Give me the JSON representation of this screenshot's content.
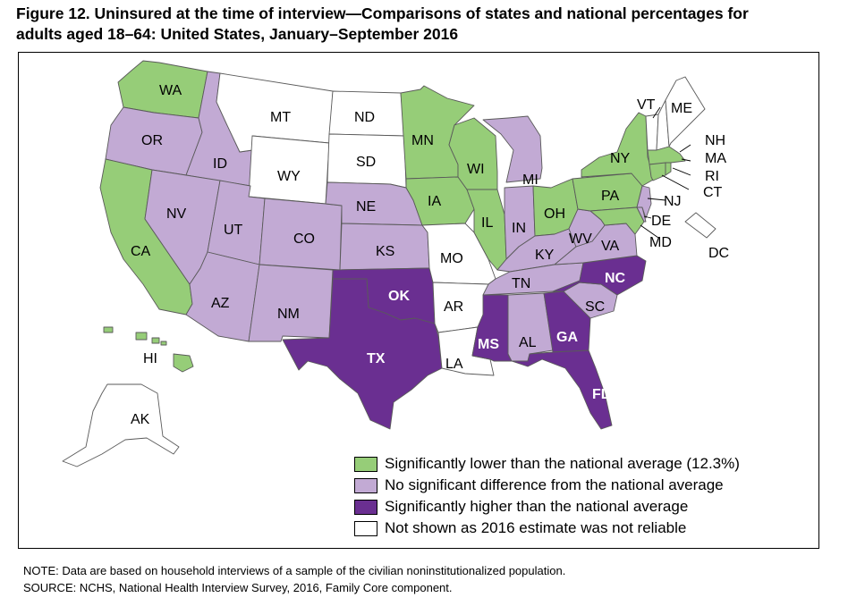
{
  "title_line1": "Figure 12. Uninsured at the time of interview—Comparisons of states and national percentages for",
  "title_line2": "adults aged 18–64: United States, January–September 2016",
  "colors": {
    "lower": "#96cd78",
    "no_difference": "#c2aad4",
    "higher": "#6a2f91",
    "not_shown": "#ffffff",
    "border": "#5a5a5a"
  },
  "legend": [
    {
      "key": "lower",
      "label": "Significantly lower than the national average (12.3%)"
    },
    {
      "key": "no_difference",
      "label": "No significant difference from the national average"
    },
    {
      "key": "higher",
      "label": "Significantly higher than the national average"
    },
    {
      "key": "not_shown",
      "label": "Not shown as 2016 estimate was not reliable"
    }
  ],
  "note": "NOTE: Data are based on household interviews of a sample of the civilian noninstitutionalized population.",
  "source": "SOURCE: NCHS, National Health Interview Survey, 2016, Family Core component.",
  "states": {
    "WA": "lower",
    "OR": "no_difference",
    "CA": "lower",
    "ID": "no_difference",
    "NV": "no_difference",
    "MT": "not_shown",
    "WY": "not_shown",
    "UT": "no_difference",
    "AZ": "no_difference",
    "CO": "no_difference",
    "NM": "no_difference",
    "ND": "not_shown",
    "SD": "not_shown",
    "NE": "no_difference",
    "KS": "no_difference",
    "OK": "higher",
    "TX": "higher",
    "MN": "lower",
    "IA": "lower",
    "MO": "not_shown",
    "AR": "not_shown",
    "LA": "not_shown",
    "WI": "lower",
    "IL": "lower",
    "MI": "no_difference",
    "IN": "no_difference",
    "OH": "lower",
    "KY": "no_difference",
    "TN": "no_difference",
    "MS": "higher",
    "AL": "no_difference",
    "GA": "higher",
    "FL": "higher",
    "SC": "no_difference",
    "NC": "higher",
    "VA": "no_difference",
    "WV": "no_difference",
    "PA": "lower",
    "NY": "lower",
    "VT": "not_shown",
    "NH": "not_shown",
    "ME": "not_shown",
    "MA": "lower",
    "RI": "lower",
    "CT": "lower",
    "NJ": "no_difference",
    "DE": "no_difference",
    "MD": "lower",
    "DC": "not_shown",
    "AK": "not_shown",
    "HI": "lower"
  },
  "labels": {
    "WA": "WA",
    "OR": "OR",
    "CA": "CA",
    "ID": "ID",
    "NV": "NV",
    "MT": "MT",
    "WY": "WY",
    "UT": "UT",
    "AZ": "AZ",
    "CO": "CO",
    "NM": "NM",
    "ND": "ND",
    "SD": "SD",
    "NE": "NE",
    "KS": "KS",
    "OK": "OK",
    "TX": "TX",
    "MN": "MN",
    "IA": "IA",
    "MO": "MO",
    "AR": "AR",
    "LA": "LA",
    "WI": "WI",
    "IL": "IL",
    "MI": "MI",
    "IN": "IN",
    "OH": "OH",
    "KY": "KY",
    "TN": "TN",
    "MS": "MS",
    "AL": "AL",
    "GA": "GA",
    "FL": "FL",
    "SC": "SC",
    "NC": "NC",
    "VA": "VA",
    "WV": "WV",
    "PA": "PA",
    "NY": "NY",
    "VT": "VT",
    "NH": "NH",
    "ME": "ME",
    "MA": "MA",
    "RI": "RI",
    "CT": "CT",
    "NJ": "NJ",
    "DE": "DE",
    "MD": "MD",
    "DC": "DC",
    "AK": "AK",
    "HI": "HI"
  }
}
